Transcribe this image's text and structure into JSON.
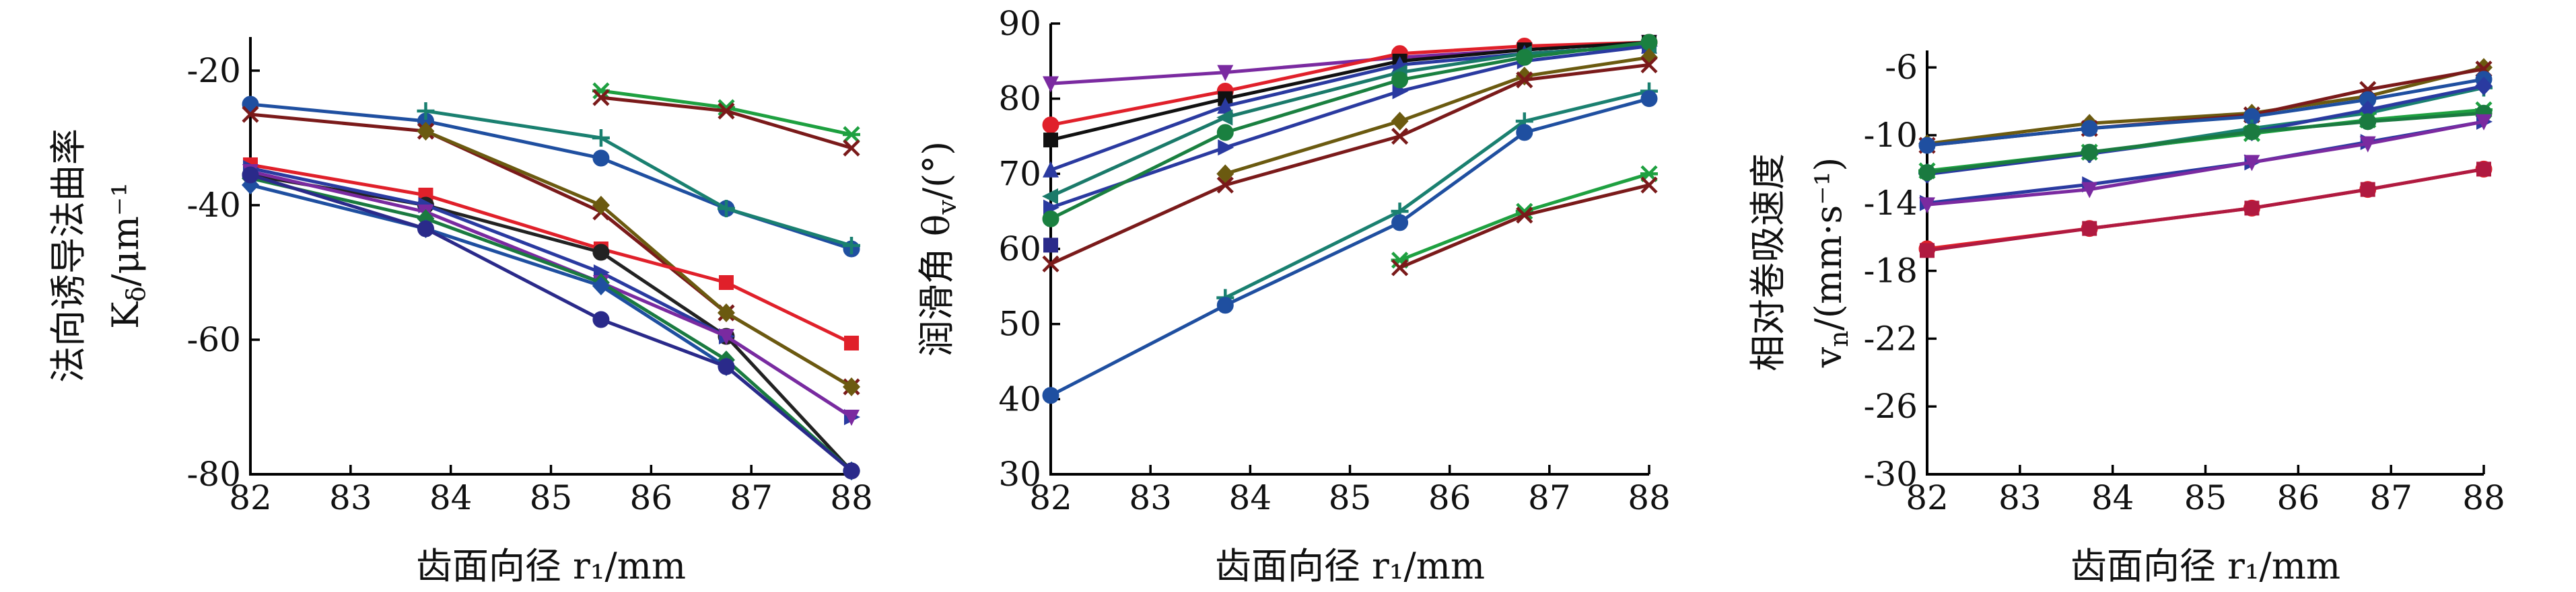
{
  "chart_data": [
    {
      "type": "line",
      "xlabel": "齿面向径 r₁/mm",
      "ylabel": [
        "法向诱导法曲率",
        "K_δ/μm⁻¹"
      ],
      "xlim": [
        82,
        88
      ],
      "ylim": [
        -80,
        -15
      ],
      "xticks": [
        "82",
        "83",
        "84",
        "85",
        "86",
        "87",
        "88"
      ],
      "yticks": [
        "-20",
        "-40",
        "-60",
        "-80"
      ],
      "x": [
        82,
        83.75,
        85.5,
        86.75,
        88
      ],
      "series": [
        {
          "color": "#1f4fa0",
          "marker": "circle",
          "values": [
            -25,
            -27.5,
            -33,
            -40.5,
            -46.5
          ]
        },
        {
          "color": "#1a8070",
          "marker": "plus",
          "values": [
            null,
            -26,
            -30,
            -40.5,
            -46
          ]
        },
        {
          "color": "#7a1a1a",
          "marker": "x",
          "values": [
            -26.5,
            -29,
            -41,
            -56,
            -67
          ]
        },
        {
          "color": "#6b5a10",
          "marker": "diamond",
          "values": [
            null,
            -29,
            -40,
            -56,
            -67
          ]
        },
        {
          "color": "#1ea040",
          "marker": "asterisk",
          "values": [
            null,
            null,
            -23,
            -25.5,
            -29.5
          ]
        },
        {
          "color": "#7a1a1a",
          "marker": "x",
          "values": [
            null,
            null,
            -24,
            -26,
            -31.5
          ]
        },
        {
          "color": "#e0202a",
          "marker": "square",
          "values": [
            -34,
            -38.5,
            -46.5,
            -51.5,
            -60.5
          ]
        },
        {
          "color": "#222222",
          "marker": "circle",
          "values": [
            -35.5,
            -40,
            -47,
            -59.5,
            -79.5
          ]
        },
        {
          "color": "#2a3aa0",
          "marker": "triangle-right",
          "values": [
            -34.5,
            -40,
            -50,
            -59.5,
            -71.5
          ]
        },
        {
          "color": "#7a2aa0",
          "marker": "triangle-down",
          "values": [
            -35,
            -41,
            -51.5,
            -59.5,
            -71.5
          ]
        },
        {
          "color": "#1a7a40",
          "marker": "diamond",
          "values": [
            -36,
            -42,
            -51.5,
            -63,
            -79.5
          ]
        },
        {
          "color": "#1f4fa0",
          "marker": "diamond",
          "values": [
            -37,
            -43.5,
            -52,
            -64,
            -79.5
          ]
        },
        {
          "color": "#2a2a8a",
          "marker": "circle",
          "values": [
            -35.5,
            -43.5,
            -57,
            -64,
            -79.5
          ]
        }
      ]
    },
    {
      "type": "line",
      "xlabel": "齿面向径 r₁/mm",
      "ylabel": [
        "润滑角 θ_v/(°)"
      ],
      "xlim": [
        82,
        88
      ],
      "ylim": [
        30,
        90
      ],
      "xticks": [
        "82",
        "83",
        "84",
        "85",
        "86",
        "87",
        "88"
      ],
      "yticks": [
        "30",
        "40",
        "50",
        "60",
        "70",
        "80",
        "90"
      ],
      "x": [
        82,
        83.75,
        85.5,
        86.75,
        88
      ],
      "series": [
        {
          "color": "#7a2aa0",
          "marker": "triangle-down",
          "values": [
            82,
            83.5,
            85.5,
            86.5,
            87.5
          ]
        },
        {
          "color": "#e0202a",
          "marker": "circle",
          "values": [
            76.5,
            81,
            86,
            87,
            87.5
          ]
        },
        {
          "color": "#111111",
          "marker": "square",
          "values": [
            74.5,
            80,
            85,
            86.5,
            87.5
          ]
        },
        {
          "color": "#2a3aa0",
          "marker": "triangle-up",
          "values": [
            70.5,
            79,
            84.5,
            86,
            87
          ]
        },
        {
          "color": "#1a7a6a",
          "marker": "triangle-left",
          "values": [
            67,
            77.5,
            83.5,
            86,
            87
          ]
        },
        {
          "color": "#2a3aa0",
          "marker": "triangle-right",
          "values": [
            65.5,
            73.5,
            81,
            85,
            87
          ]
        },
        {
          "color": "#1a8040",
          "marker": "circle",
          "values": [
            64,
            75.5,
            82.5,
            85.5,
            87.5
          ]
        },
        {
          "color": "#2a2a8a",
          "marker": "square",
          "values": [
            60.5,
            null,
            null,
            null,
            null
          ]
        },
        {
          "color": "#6b5a10",
          "marker": "diamond",
          "values": [
            null,
            70,
            77,
            83,
            85.5
          ]
        },
        {
          "color": "#7a1a1a",
          "marker": "x",
          "values": [
            58,
            68.5,
            75,
            82.5,
            84.5
          ]
        },
        {
          "color": "#1a8070",
          "marker": "plus",
          "values": [
            null,
            53.5,
            65,
            77,
            81
          ]
        },
        {
          "color": "#1f4fa0",
          "marker": "circle",
          "values": [
            40.5,
            52.5,
            63.5,
            75.5,
            80
          ]
        },
        {
          "color": "#1ea040",
          "marker": "asterisk",
          "values": [
            null,
            null,
            58.5,
            65,
            70
          ]
        },
        {
          "color": "#7a1a1a",
          "marker": "x",
          "values": [
            null,
            null,
            57.5,
            64.5,
            68.5
          ]
        }
      ]
    },
    {
      "type": "line",
      "xlabel": "齿面向径 r₁/mm",
      "ylabel": [
        "相对卷吸速度",
        "v_n/(mm·s⁻¹)"
      ],
      "xlim": [
        82,
        88
      ],
      "ylim": [
        -30,
        -5
      ],
      "xticks": [
        "82",
        "83",
        "84",
        "85",
        "86",
        "87",
        "88"
      ],
      "yticks": [
        "-6",
        "-10",
        "-14",
        "-18",
        "-22",
        "-26",
        "-30"
      ],
      "x": [
        82,
        83.75,
        85.5,
        86.75,
        88
      ],
      "series": [
        {
          "color": "#6b5a10",
          "marker": "diamond",
          "values": [
            -10.5,
            -9.3,
            -8.7,
            -7.7,
            -6
          ]
        },
        {
          "color": "#7a1a1a",
          "marker": "x",
          "values": [
            -10.6,
            -9.6,
            -8.8,
            -7.3,
            -6.1
          ]
        },
        {
          "color": "#1f4fa0",
          "marker": "circle",
          "values": [
            -10.6,
            -9.6,
            -8.9,
            -7.9,
            -6.7
          ]
        },
        {
          "color": "#1a8070",
          "marker": "plus",
          "values": [
            -12.2,
            -11.1,
            -9.6,
            -8.7,
            -7.2
          ]
        },
        {
          "color": "#2a3aa0",
          "marker": "diamond",
          "values": [
            -12.3,
            -11.1,
            -9.8,
            -8.5,
            -7.1
          ]
        },
        {
          "color": "#1ea040",
          "marker": "asterisk",
          "values": [
            -12.1,
            -11,
            -9.9,
            -9.1,
            -8.5
          ]
        },
        {
          "color": "#1a7a40",
          "marker": "circle",
          "values": [
            -12.2,
            -11,
            -9.8,
            -9.2,
            -8.7
          ]
        },
        {
          "color": "#2a3aa0",
          "marker": "triangle-right",
          "values": [
            -14,
            -12.9,
            -11.6,
            -10.4,
            -9.2
          ]
        },
        {
          "color": "#7a2aa0",
          "marker": "triangle-down",
          "values": [
            -14.1,
            -13.2,
            -11.6,
            -10.5,
            -9.2
          ]
        },
        {
          "color": "#e0202a",
          "marker": "circle",
          "values": [
            -16.7,
            -15.5,
            -14.3,
            -13.2,
            -12
          ]
        },
        {
          "color": "#b01a40",
          "marker": "square",
          "values": [
            -16.8,
            -15.5,
            -14.3,
            -13.2,
            -12
          ]
        }
      ]
    }
  ]
}
